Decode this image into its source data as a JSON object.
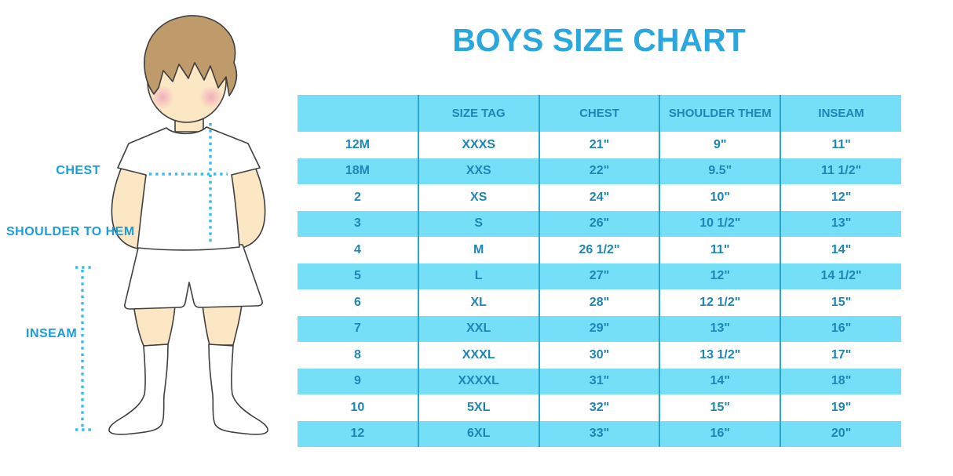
{
  "title": "BOYS SIZE CHART",
  "figure": {
    "chest_label": "CHEST",
    "shoulder_to_hem_label": "SHOULDER TO HEM",
    "inseam_label": "INSEAM"
  },
  "chart_data": {
    "type": "table",
    "title": "BOYS SIZE CHART",
    "columns": [
      "",
      "SIZE TAG",
      "CHEST",
      "SHOULDER THEM",
      "INSEAM"
    ],
    "rows": [
      [
        "12M",
        "XXXS",
        "21\"",
        "9\"",
        "11\""
      ],
      [
        "18M",
        "XXS",
        "22\"",
        "9.5\"",
        "11 1/2\""
      ],
      [
        "2",
        "XS",
        "24\"",
        "10\"",
        "12\""
      ],
      [
        "3",
        "S",
        "26\"",
        "10 1/2\"",
        "13\""
      ],
      [
        "4",
        "M",
        "26 1/2\"",
        "11\"",
        "14\""
      ],
      [
        "5",
        "L",
        "27\"",
        "12\"",
        "14 1/2\""
      ],
      [
        "6",
        "XL",
        "28\"",
        "12 1/2\"",
        "15\""
      ],
      [
        "7",
        "XXL",
        "29\"",
        "13\"",
        "16\""
      ],
      [
        "8",
        "XXXL",
        "30\"",
        "13 1/2\"",
        "17\""
      ],
      [
        "9",
        "XXXXL",
        "31\"",
        "14\"",
        "18\""
      ],
      [
        "10",
        "5XL",
        "32\"",
        "15\"",
        "19\""
      ],
      [
        "12",
        "6XL",
        "33\"",
        "16\"",
        "20\""
      ]
    ],
    "layout": {
      "row_striping": "white / light-blue alternating, header light-blue",
      "grid": "vertical column separators only"
    }
  },
  "colors": {
    "title_blue": "#2aa7dc",
    "label_blue": "#1b9cdb",
    "cell_blue": "#76dff8",
    "table_text": "#1e86b6",
    "grid_line": "#2aa5ce",
    "dotted_line": "#3abbe8",
    "skin": "#fbe7c4",
    "hair": "#bf9a6b",
    "cheek": "#f2a8ba",
    "outline": "#3f3f3f"
  }
}
